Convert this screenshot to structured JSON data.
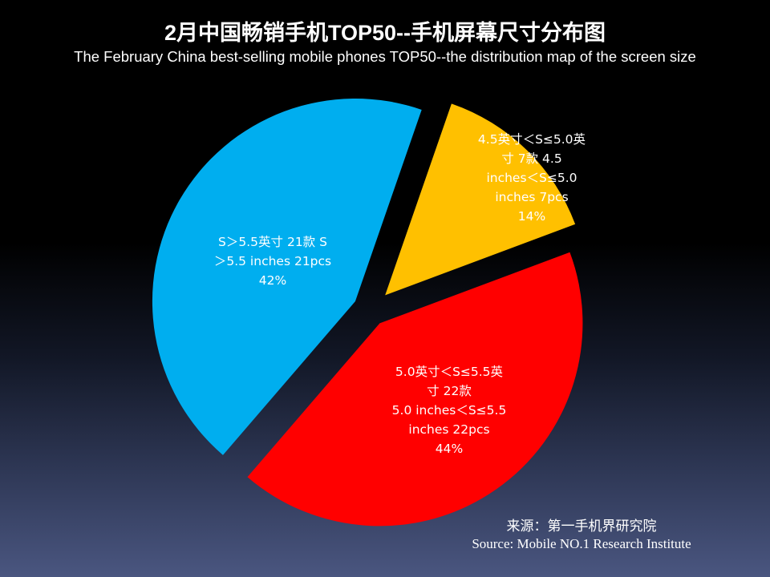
{
  "chart_data": {
    "type": "pie",
    "title": "2月中国畅销手机TOP50--手机屏幕尺寸分布图",
    "subtitle": "The February China best-selling mobile phones TOP50--the distribution map of the screen size",
    "slices": [
      {
        "value": 21,
        "percent": 42,
        "color": "#ff0000",
        "label_lines": [
          "S＞5.5英寸 21款 S",
          "＞5.5 inches 21pcs",
          "42%"
        ]
      },
      {
        "value": 22,
        "percent": 44,
        "color": "#00aeef",
        "label_lines": [
          "5.0英寸＜S≤5.5英",
          "寸 22款",
          "5.0 inches＜S≤5.5",
          "inches 22pcs",
          "44%"
        ]
      },
      {
        "value": 7,
        "percent": 14,
        "color": "#ffc000",
        "label_lines": [
          "4.5英寸＜S≤5.0英",
          "寸 7款 4.5",
          "inches＜S≤5.0",
          "inches 7pcs",
          "14%"
        ]
      }
    ]
  },
  "source": {
    "line1": "来源：第一手机界研究院",
    "line2": "Source: Mobile NO.1 Research Institute"
  }
}
